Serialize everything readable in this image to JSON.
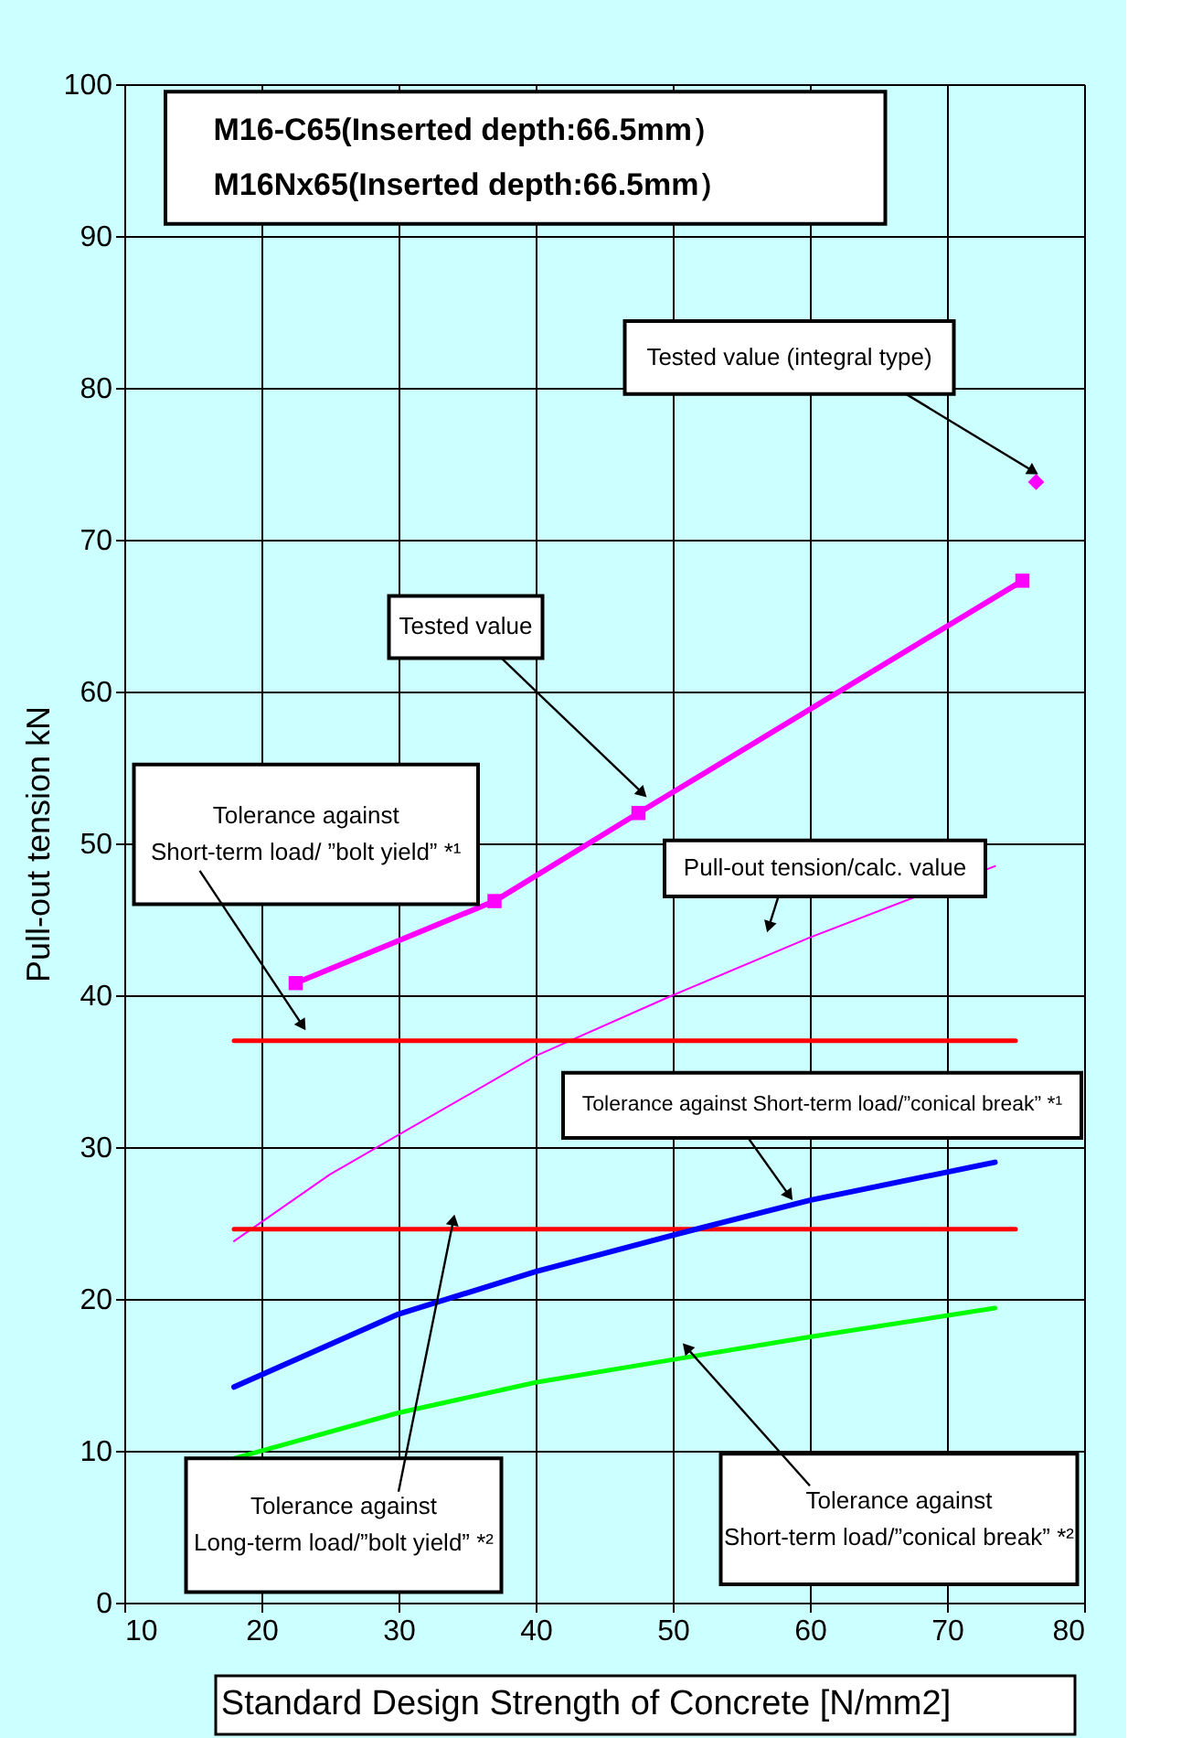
{
  "chart_data": {
    "type": "line",
    "title": "M16-C65(Inserted depth:66.5mm）\nM16Nx65(Inserted depth:66.5mm）",
    "xlabel": "Standard Design Strength of Concrete [N/mm2]",
    "ylabel": "Pull-out tension kN",
    "xlim": [
      10,
      80
    ],
    "xticks": [
      10,
      20,
      30,
      40,
      50,
      60,
      70,
      80
    ],
    "ylim": [
      0,
      100
    ],
    "yticks": [
      0,
      10,
      20,
      30,
      40,
      50,
      60,
      70,
      80,
      90,
      100
    ],
    "grid": true,
    "series": [
      {
        "color": "#ff00ff",
        "marker": "square",
        "x": [
          22.5,
          37,
          47.5,
          75.5
        ],
        "values": [
          40.8,
          46.2,
          52,
          67.3
        ]
      },
      {
        "type": "scatter",
        "color": "#ff00ff",
        "marker": "diamond",
        "x": [
          76.5
        ],
        "values": [
          73.8
        ]
      },
      {
        "color": "#ff00ff",
        "x": [
          18,
          25,
          30,
          40,
          50,
          60,
          73.5
        ],
        "values": [
          23.8,
          28.2,
          30.8,
          36,
          40,
          43.8,
          48.5
        ]
      },
      {
        "color": "#ff0000",
        "x": [
          18,
          75
        ],
        "values": [
          37,
          37
        ]
      },
      {
        "color": "#ff0000",
        "x": [
          18,
          75
        ],
        "values": [
          24.6,
          24.6
        ]
      },
      {
        "color": "#0000ff",
        "x": [
          18,
          25,
          30,
          40,
          50,
          60,
          73.5
        ],
        "values": [
          14.2,
          17,
          19,
          21.8,
          24.2,
          26.5,
          29
        ]
      },
      {
        "color": "#00ff00",
        "x": [
          18,
          30,
          40,
          50,
          60,
          73.5
        ],
        "values": [
          9.5,
          12.5,
          14.5,
          16,
          17.5,
          19.4
        ]
      }
    ],
    "annotations": [
      {
        "text": "Tested value (integral type)",
        "x": 76.3,
        "y": 74.5
      },
      {
        "text": "Tested value",
        "x": 47.8,
        "y": 53.3
      },
      {
        "text": "Pull-out tension/calc. value",
        "x": 57,
        "y": 44.5
      },
      {
        "text": "Tolerance against\nShort-term load/ ”bolt yield” *¹",
        "x": 23,
        "y": 38
      },
      {
        "text": "Tolerance against Short-term load/”conical break” *¹",
        "x": 58.5,
        "y": 26.8
      },
      {
        "text": "Tolerance against\nLong-term load/”bolt yield” *²",
        "x": 34,
        "y": 25.2
      },
      {
        "text": "Tolerance against\nShort-term load/”conical break” *²",
        "x": 51,
        "y": 16.8
      }
    ]
  }
}
